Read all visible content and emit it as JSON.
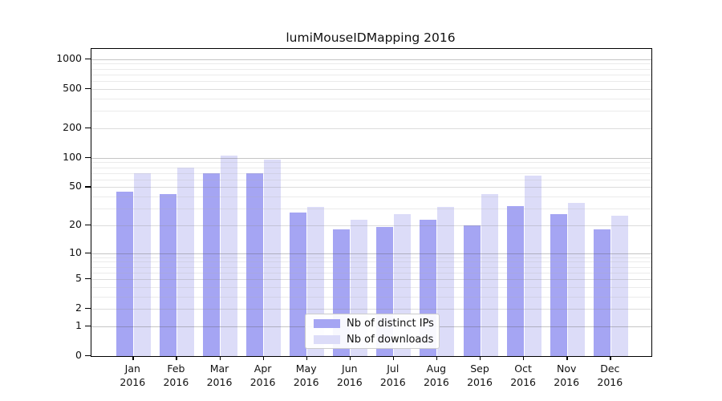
{
  "title": "lumiMouseIDMapping 2016",
  "chart_data": {
    "type": "bar",
    "title": "lumiMouseIDMapping 2016",
    "categories": [
      "Jan",
      "Feb",
      "Mar",
      "Apr",
      "May",
      "Jun",
      "Jul",
      "Aug",
      "Sep",
      "Oct",
      "Nov",
      "Dec"
    ],
    "x_year_label": "2016",
    "series": [
      {
        "name": "Nb of distinct IPs",
        "color": "#a5a5f3",
        "values": [
          45,
          42,
          70,
          69,
          27,
          18,
          19,
          23,
          20,
          32,
          26,
          18
        ]
      },
      {
        "name": "Nb of downloads",
        "color": "#dcdcf8",
        "values": [
          70,
          80,
          105,
          96,
          31,
          23,
          26,
          31,
          42,
          66,
          34,
          25
        ]
      }
    ],
    "y_scale": "log1p",
    "y_ticks": [
      0,
      1,
      2,
      5,
      10,
      20,
      50,
      100,
      200,
      500,
      1000
    ],
    "y_minor_gridlines": [
      3,
      4,
      6,
      7,
      8,
      9,
      30,
      40,
      60,
      70,
      80,
      90,
      300,
      400,
      600,
      700,
      800,
      900
    ],
    "y_medium_gridlines": [
      2,
      5,
      20,
      50,
      200,
      500
    ],
    "y_major_gridlines": [
      1,
      10,
      100,
      1000
    ],
    "ylim": [
      0,
      1240
    ],
    "grid": true,
    "legend_position": "inside-bottom-center"
  }
}
